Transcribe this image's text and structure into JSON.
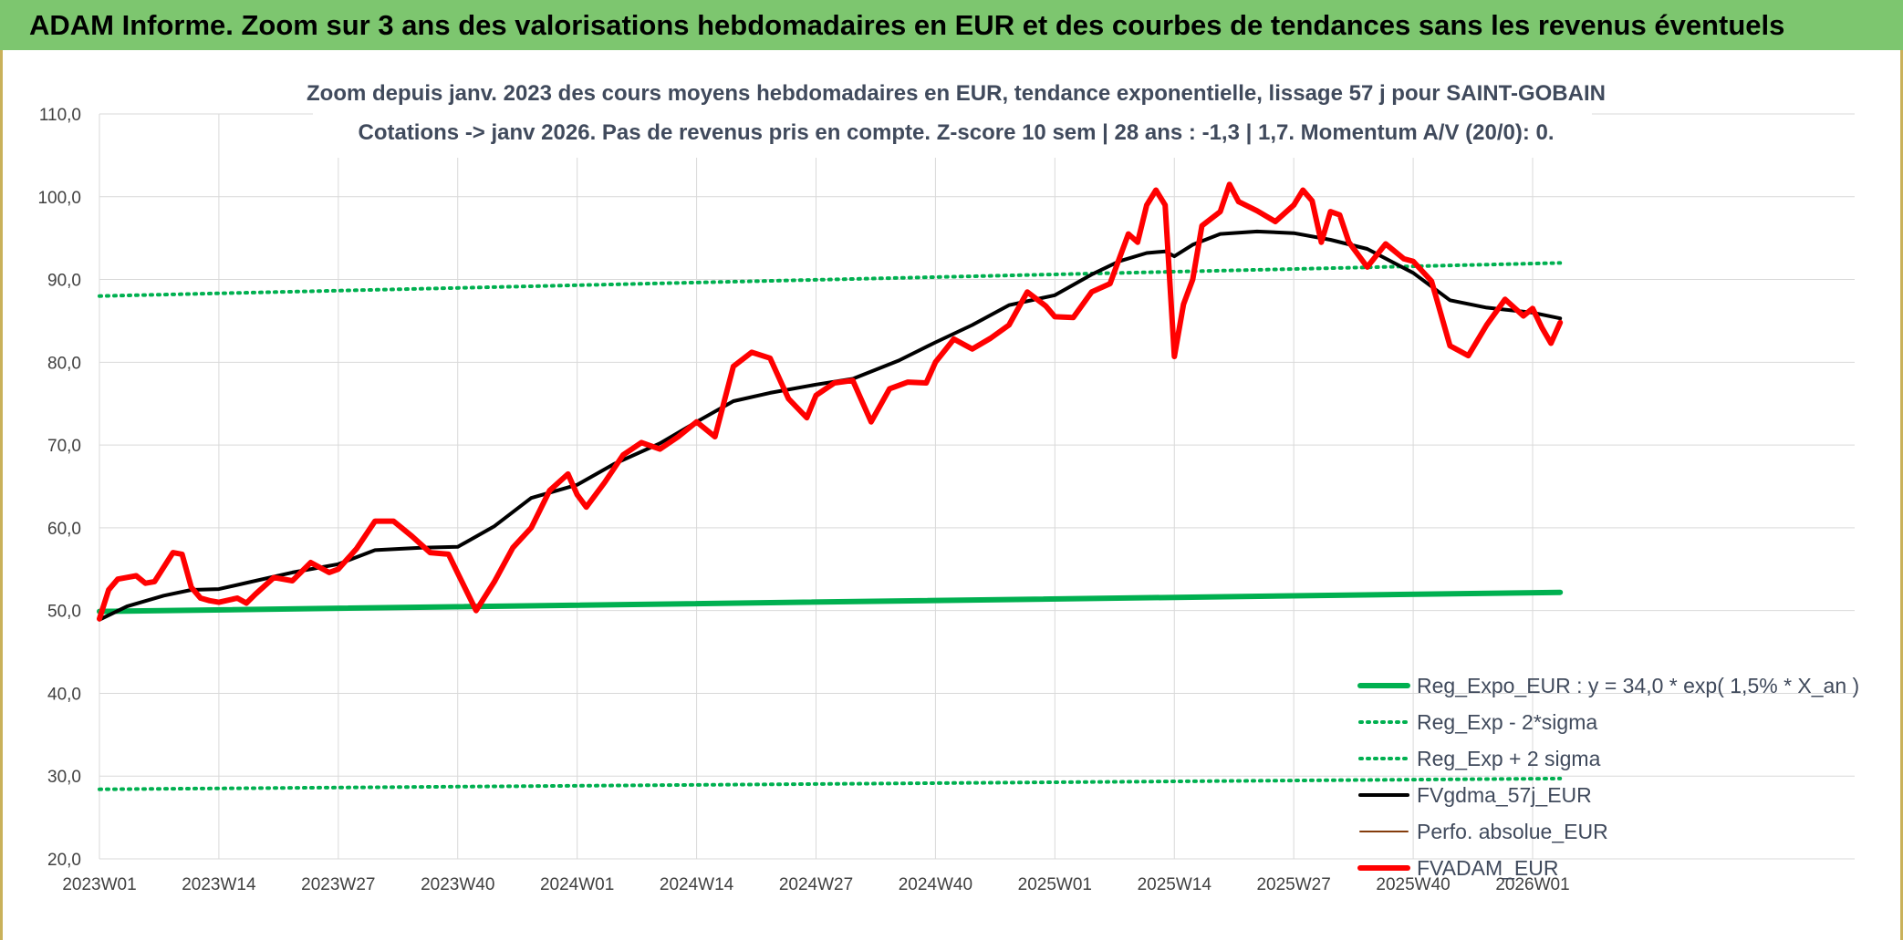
{
  "banner": {
    "title": "ADAM Informe. Zoom sur 3 ans des valorisations hebdomadaires en EUR et des courbes de tendances sans les revenus éventuels"
  },
  "chart_data": {
    "type": "line",
    "title": "Zoom depuis janv. 2023 des cours moyens hebdomadaires en EUR, tendance exponentielle, lissage 57 j pour SAINT-GOBAIN",
    "subtitle": "Cotations -> janv 2026. Pas de revenus pris en compte. Z-score 10 sem | 28 ans : -1,3 | 1,7. Momentum A/V (20/0): 0.",
    "xlabel": "",
    "ylabel": "",
    "x_ticks": [
      "2023W01",
      "2023W14",
      "2023W27",
      "2023W40",
      "2024W01",
      "2024W14",
      "2024W27",
      "2024W40",
      "2025W01",
      "2025W14",
      "2025W27",
      "2025W40",
      "2026W01"
    ],
    "y_ticks": [
      "20,0",
      "30,0",
      "40,0",
      "50,0",
      "60,0",
      "70,0",
      "80,0",
      "90,0",
      "100,0",
      "110,0"
    ],
    "ylim": [
      20,
      110
    ],
    "grid": true,
    "legend_position": "bottom-right",
    "series": [
      {
        "name": "Reg_Expo_EUR : y = 34,0 * exp( 1,5% *  X_an )",
        "color": "#00b050",
        "style": "solid-thick",
        "x": [
          "2023W01",
          "2026W04"
        ],
        "values": [
          49.9,
          52.2
        ]
      },
      {
        "name": "Reg_Exp - 2*sigma",
        "color": "#00b050",
        "style": "dotted",
        "x": [
          "2023W01",
          "2026W04"
        ],
        "values": [
          28.4,
          29.7
        ]
      },
      {
        "name": "Reg_Exp + 2 sigma",
        "color": "#00b050",
        "style": "dotted",
        "x": [
          "2023W01",
          "2026W04"
        ],
        "values": [
          88.0,
          92.0
        ]
      },
      {
        "name": "FVgdma_57j_EUR",
        "color": "#000000",
        "style": "solid",
        "x": [
          "2023W01",
          "2023W04",
          "2023W08",
          "2023W11",
          "2023W14",
          "2023W18",
          "2023W22",
          "2023W27",
          "2023W31",
          "2023W36",
          "2023W40",
          "2023W44",
          "2023W48",
          "2024W01",
          "2024W05",
          "2024W10",
          "2024W14",
          "2024W18",
          "2024W22",
          "2024W27",
          "2024W31",
          "2024W36",
          "2024W40",
          "2024W44",
          "2024W48",
          "2025W01",
          "2025W05",
          "2025W08",
          "2025W11",
          "2025W13",
          "2025W14",
          "2025W16",
          "2025W19",
          "2025W23",
          "2025W27",
          "2025W31",
          "2025W35",
          "2025W40",
          "2025W44",
          "2025W48",
          "2026W01",
          "2026W04"
        ],
        "values": [
          48.9,
          50.5,
          51.8,
          52.5,
          52.6,
          53.6,
          54.6,
          55.6,
          57.3,
          57.6,
          57.7,
          60.2,
          63.6,
          65.2,
          67.7,
          70.2,
          72.8,
          75.3,
          76.3,
          77.3,
          78.0,
          80.2,
          82.4,
          84.5,
          86.9,
          88.1,
          90.6,
          92.2,
          93.2,
          93.4,
          92.8,
          94.2,
          95.5,
          95.8,
          95.6,
          94.8,
          93.7,
          90.8,
          87.5,
          86.6,
          86.0,
          85.3
        ]
      },
      {
        "name": "Perfo. absolue_EUR",
        "color": "#843c0c",
        "style": "solid-thin",
        "x": [],
        "values": []
      },
      {
        "name": "FVADAM_EUR",
        "color": "#ff0000",
        "style": "solid-thick",
        "x": [
          "2023W01",
          "2023W02",
          "2023W03",
          "2023W05",
          "2023W06",
          "2023W07",
          "2023W09",
          "2023W10",
          "2023W11",
          "2023W12",
          "2023W13",
          "2023W14",
          "2023W16",
          "2023W17",
          "2023W18",
          "2023W20",
          "2023W22",
          "2023W24",
          "2023W26",
          "2023W27",
          "2023W29",
          "2023W31",
          "2023W33",
          "2023W35",
          "2023W37",
          "2023W39",
          "2023W40",
          "2023W42",
          "2023W44",
          "2023W46",
          "2023W48",
          "2023W50",
          "2023W52",
          "2024W01",
          "2024W02",
          "2024W04",
          "2024W06",
          "2024W08",
          "2024W10",
          "2024W12",
          "2024W14",
          "2024W16",
          "2024W18",
          "2024W20",
          "2024W22",
          "2024W24",
          "2024W26",
          "2024W27",
          "2024W29",
          "2024W31",
          "2024W33",
          "2024W35",
          "2024W37",
          "2024W39",
          "2024W40",
          "2024W42",
          "2024W44",
          "2024W46",
          "2024W48",
          "2024W50",
          "2024W52",
          "2025W01",
          "2025W03",
          "2025W05",
          "2025W07",
          "2025W09",
          "2025W10",
          "2025W11",
          "2025W12",
          "2025W13",
          "2025W14",
          "2025W15",
          "2025W16",
          "2025W17",
          "2025W19",
          "2025W20",
          "2025W21",
          "2025W23",
          "2025W25",
          "2025W27",
          "2025W28",
          "2025W29",
          "2025W30",
          "2025W31",
          "2025W32",
          "2025W33",
          "2025W35",
          "2025W37",
          "2025W39",
          "2025W40",
          "2025W42",
          "2025W44",
          "2025W46",
          "2025W48",
          "2025W50",
          "2025W52",
          "2026W01",
          "2026W02",
          "2026W03",
          "2026W04"
        ],
        "values": [
          49.0,
          52.5,
          53.8,
          54.2,
          53.3,
          53.5,
          57.0,
          56.8,
          52.8,
          51.5,
          51.2,
          51.0,
          51.5,
          50.9,
          52.0,
          54.0,
          53.6,
          55.8,
          54.6,
          55.0,
          57.5,
          60.8,
          60.8,
          59.0,
          57.0,
          56.8,
          54.5,
          50.0,
          53.5,
          57.6,
          60.0,
          64.5,
          66.5,
          64.0,
          62.5,
          65.5,
          68.8,
          70.3,
          69.5,
          71.0,
          72.8,
          71.0,
          79.5,
          81.2,
          80.5,
          75.6,
          73.3,
          76.0,
          77.5,
          77.8,
          72.8,
          76.8,
          77.6,
          77.5,
          80.0,
          82.8,
          81.6,
          82.9,
          84.5,
          88.5,
          86.8,
          85.5,
          85.4,
          88.5,
          89.5,
          95.5,
          94.5,
          99.0,
          100.8,
          99.0,
          80.7,
          87.0,
          90.0,
          96.5,
          98.2,
          101.5,
          99.4,
          98.3,
          97.0,
          99.0,
          100.8,
          99.5,
          94.5,
          98.2,
          97.8,
          94.5,
          91.5,
          94.3,
          92.5,
          92.2,
          89.8,
          82.0,
          80.8,
          84.5,
          87.6,
          85.6,
          86.5,
          84.2,
          82.3,
          84.8
        ]
      }
    ]
  }
}
